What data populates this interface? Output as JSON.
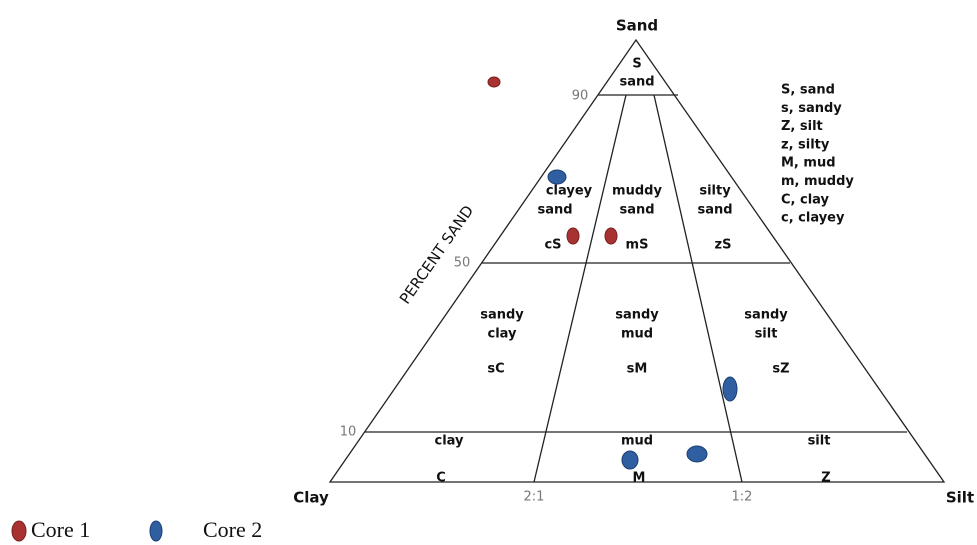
{
  "apex": "Sand",
  "corners": [
    "Clay",
    "Silt"
  ],
  "axis_label": "PERCENT SAND",
  "ticks": [
    "90",
    "50",
    "10"
  ],
  "base_ticks": [
    "2:1",
    "1:2"
  ],
  "regions": [
    {
      "code": "S",
      "name": [
        "sand"
      ]
    },
    {
      "code": "cS",
      "name": [
        "clayey",
        "sand"
      ]
    },
    {
      "code": "mS",
      "name": [
        "muddy",
        "sand"
      ]
    },
    {
      "code": "zS",
      "name": [
        "silty",
        "sand"
      ]
    },
    {
      "code": "sC",
      "name": [
        "sandy",
        "clay"
      ]
    },
    {
      "code": "sM",
      "name": [
        "sandy",
        "mud"
      ]
    },
    {
      "code": "sZ",
      "name": [
        "sandy",
        "silt"
      ]
    },
    {
      "code": "C",
      "name": [
        "clay"
      ]
    },
    {
      "code": "M",
      "name": [
        "mud"
      ]
    },
    {
      "code": "Z",
      "name": [
        "silt"
      ]
    }
  ],
  "key": [
    "S, sand",
    "s, sandy",
    "Z, silt",
    "z, silty",
    "M, mud",
    "m, muddy",
    "C, clay",
    "c, clayey"
  ],
  "legend": [
    "Core 1",
    "Core 2"
  ]
}
